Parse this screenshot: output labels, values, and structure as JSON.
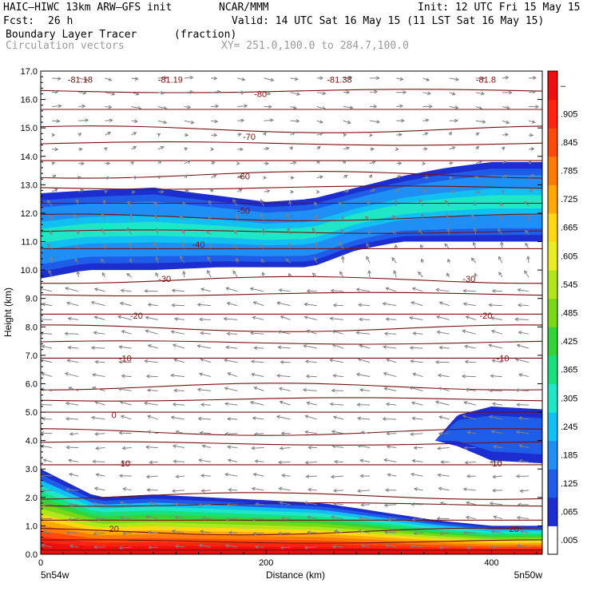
{
  "header": {
    "model": "HAIC–HIWC 13km ARW–GFS init",
    "org": "NCAR/MMM",
    "init": "Init: 12 UTC Fri 15 May 15",
    "fcst_label": "Fcst:",
    "fcst_value": "26 h",
    "valid": "Valid: 14 UTC Sat 16 May 15 (11 LST Sat 16 May 15)",
    "field_name": "Boundary Layer Tracer",
    "field_unit": "(fraction)",
    "overlay_name": "Circulation vectors",
    "xy_range": "XY= 251.0,100.0 to 284.7,100.0"
  },
  "chart_data": {
    "type": "heatmap",
    "xlabel": "Distance (km)",
    "ylabel": "Height (km)",
    "xlim": [
      0,
      445
    ],
    "ylim": [
      0,
      17
    ],
    "x_ticks": [
      "0",
      "200",
      "400"
    ],
    "y_ticks": [
      "0.0",
      "1.0",
      "2.0",
      "3.0",
      "4.0",
      "5.0",
      "6.0",
      "7.0",
      "8.0",
      "9.0",
      "10.0",
      "11.0",
      "12.0",
      "13.0",
      "14.0",
      "15.0",
      "16.0",
      "17.0"
    ],
    "endpoints": {
      "left": "5n54w",
      "right": "5n50w"
    },
    "colorbar": {
      "labels": [
        ".005",
        ".065",
        ".125",
        ".185",
        ".245",
        ".305",
        ".365",
        ".425",
        ".485",
        ".545",
        ".605",
        ".665",
        ".725",
        ".785",
        ".845",
        ".905",
        "–"
      ],
      "colors": [
        "#ffffff",
        "#1c2ed0",
        "#1f5de8",
        "#1f8ff5",
        "#10c0f2",
        "#1ee6c6",
        "#17e07d",
        "#35d33a",
        "#79d816",
        "#b2e61c",
        "#e9ee22",
        "#ffd712",
        "#ffa808",
        "#ff7a06",
        "#ff4a0a",
        "#ff2412",
        "#ee0e0e"
      ]
    },
    "tracer_layers": [
      {
        "name": "upper",
        "x": [
          0,
          40,
          100,
          160,
          200,
          240,
          280,
          320,
          360,
          400,
          445
        ],
        "top": [
          12.7,
          12.8,
          12.9,
          12.6,
          12.4,
          12.5,
          12.9,
          13.3,
          13.6,
          13.8,
          13.8
        ],
        "bottom": [
          9.7,
          10.0,
          10.0,
          10.1,
          10.1,
          10.1,
          10.7,
          11.0,
          11.0,
          11.0,
          11.0
        ],
        "core_max": 0.245
      },
      {
        "name": "mid-right",
        "x": [
          350,
          370,
          400,
          445
        ],
        "top": [
          4.0,
          4.9,
          5.2,
          5.1
        ],
        "bottom": [
          4.0,
          3.8,
          3.3,
          3.2
        ],
        "core_max": 0.065
      },
      {
        "name": "boundary-layer",
        "x": [
          0,
          50,
          100,
          150,
          200,
          250,
          300,
          350,
          400,
          445
        ],
        "top": [
          3.0,
          2.0,
          2.1,
          2.0,
          1.9,
          1.8,
          1.5,
          1.2,
          1.0,
          1.0
        ],
        "bottom": [
          0,
          0,
          0,
          0,
          0,
          0,
          0,
          0,
          0,
          0
        ],
        "core_max": 0.99
      }
    ],
    "contour_labels": [
      {
        "value": "-81.18",
        "x": 35,
        "y": 16.7
      },
      {
        "value": "-81.19",
        "x": 115,
        "y": 16.7
      },
      {
        "value": "-81.38",
        "x": 265,
        "y": 16.7
      },
      {
        "value": "-81.8",
        "x": 395,
        "y": 16.7
      },
      {
        "value": "-80",
        "x": 195,
        "y": 16.2
      },
      {
        "value": "-70",
        "x": 185,
        "y": 14.7
      },
      {
        "value": "-60",
        "x": 180,
        "y": 13.3
      },
      {
        "value": "-50",
        "x": 180,
        "y": 12.1
      },
      {
        "value": "-40",
        "x": 140,
        "y": 10.9
      },
      {
        "value": "-30",
        "x": 110,
        "y": 9.7
      },
      {
        "value": "-30",
        "x": 380,
        "y": 9.7
      },
      {
        "value": "-20",
        "x": 85,
        "y": 8.4
      },
      {
        "value": "-20",
        "x": 395,
        "y": 8.4
      },
      {
        "value": "-10",
        "x": 75,
        "y": 6.9
      },
      {
        "value": "-10",
        "x": 410,
        "y": 6.9
      },
      {
        "value": "0",
        "x": 65,
        "y": 4.9
      },
      {
        "value": "10",
        "x": 75,
        "y": 3.2
      },
      {
        "value": "10",
        "x": 405,
        "y": 3.2
      },
      {
        "value": "20",
        "x": 65,
        "y": 0.9
      },
      {
        "value": "20",
        "x": 420,
        "y": 0.9
      }
    ],
    "contour_levels_km": [
      0.15,
      0.45,
      0.8,
      1.2,
      1.75,
      2.05,
      3.15,
      3.9,
      4.3,
      5.0,
      5.45,
      5.9,
      6.9,
      7.45,
      7.95,
      8.45,
      9.15,
      9.65,
      10.75,
      11.35,
      11.85,
      12.35,
      12.9,
      13.35,
      13.85,
      14.45,
      14.95,
      15.65,
      16.3
    ],
    "wind_field": [
      {
        "y_min": 15.0,
        "y_max": 17.0,
        "u": 0.6,
        "w": -0.05
      },
      {
        "y_min": 12.5,
        "y_max": 15.0,
        "u": 0.3,
        "w": 0.1
      },
      {
        "y_min": 9.5,
        "y_max": 12.5,
        "u": -0.2,
        "w": 0.4
      },
      {
        "y_min": 4.5,
        "y_max": 9.5,
        "u": -0.9,
        "w": 0.15
      },
      {
        "y_min": 0,
        "y_max": 4.5,
        "u": -0.8,
        "w": 0.05
      }
    ]
  }
}
